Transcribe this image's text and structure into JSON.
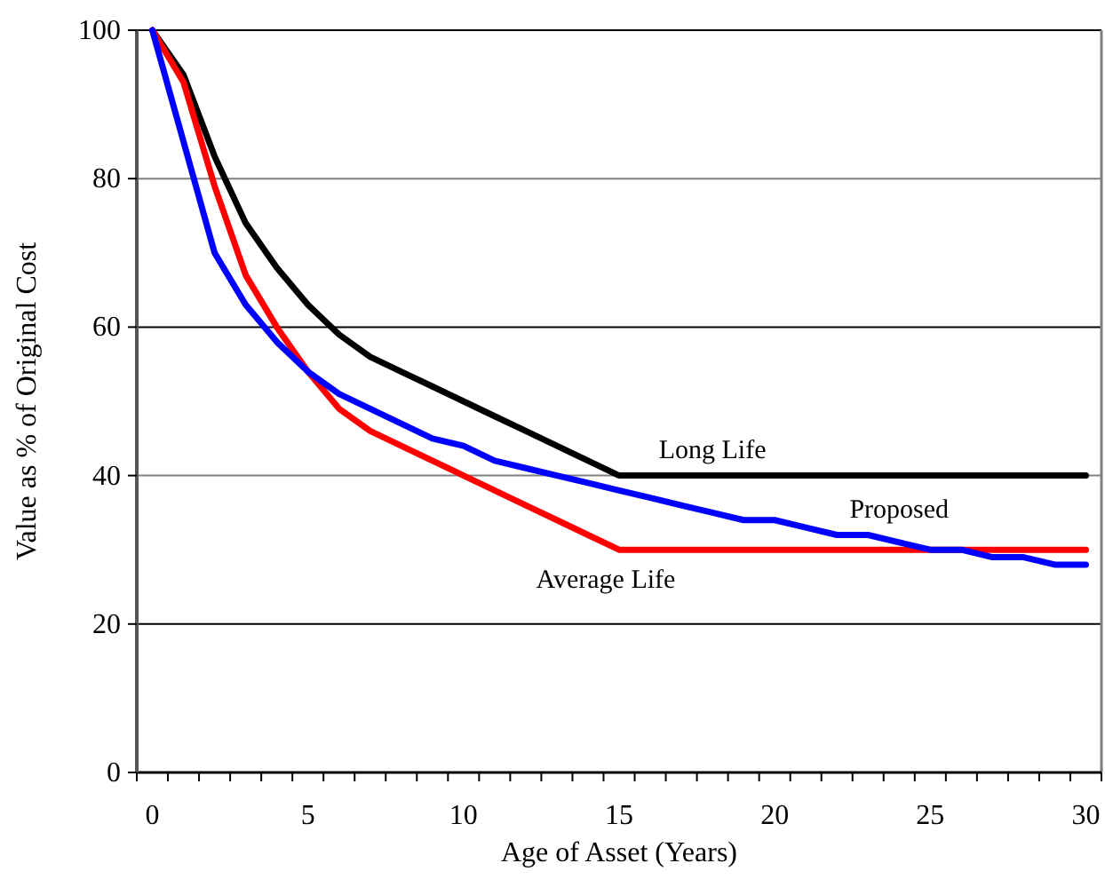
{
  "chart_data": {
    "type": "line",
    "xlabel": "Age of Asset (Years)",
    "ylabel": "Value as % of Original Cost",
    "x": [
      0,
      1,
      2,
      3,
      4,
      5,
      6,
      7,
      8,
      9,
      10,
      11,
      12,
      13,
      14,
      15,
      16,
      17,
      18,
      19,
      20,
      21,
      22,
      23,
      24,
      25,
      26,
      27,
      28,
      29,
      30
    ],
    "xlim": [
      -0.5,
      30.5
    ],
    "xticks": [
      0,
      5,
      10,
      15,
      20,
      25,
      30
    ],
    "ylim": [
      0,
      100
    ],
    "yticks": [
      0,
      20,
      40,
      60,
      80,
      100
    ],
    "grid": "y",
    "marker": "none",
    "line_style": "solid",
    "series": [
      {
        "name": "Long Life",
        "color": "#000000",
        "values": [
          100,
          94,
          83,
          74,
          68,
          63,
          59,
          56,
          54,
          52,
          50,
          48,
          46,
          44,
          42,
          40,
          40,
          40,
          40,
          40,
          40,
          40,
          40,
          40,
          40,
          40,
          40,
          40,
          40,
          40,
          40
        ]
      },
      {
        "name": "Average Life",
        "color": "#ff0000",
        "values": [
          100,
          93,
          79,
          67,
          60,
          54,
          49,
          46,
          44,
          42,
          40,
          38,
          36,
          34,
          32,
          30,
          30,
          30,
          30,
          30,
          30,
          30,
          30,
          30,
          30,
          30,
          30,
          30,
          30,
          30,
          30
        ]
      },
      {
        "name": "Proposed",
        "color": "#0000ff",
        "values": [
          100,
          85,
          70,
          63,
          58,
          54,
          51,
          49,
          47,
          45,
          44,
          42,
          41,
          40,
          39,
          38,
          37,
          36,
          35,
          34,
          34,
          33,
          32,
          32,
          31,
          30,
          30,
          29,
          29,
          28,
          28
        ]
      }
    ]
  }
}
